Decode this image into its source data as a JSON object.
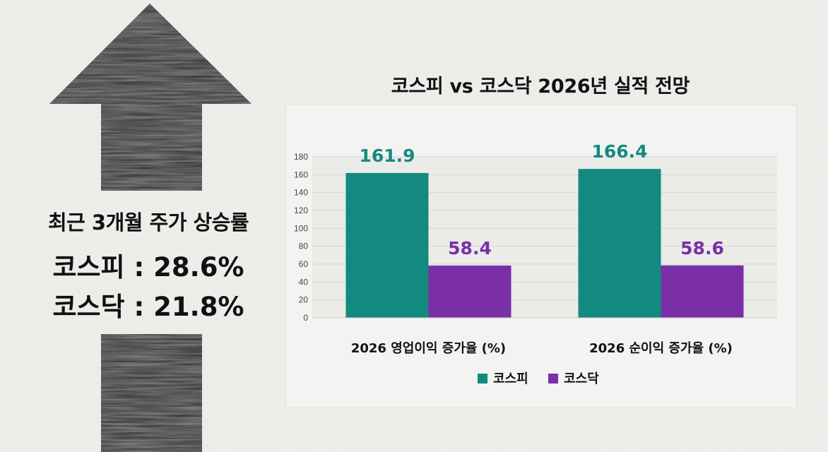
{
  "colors": {
    "kospi": "#138a7f",
    "kosdaq": "#7a2fa8",
    "arrow": "#2b2b2b",
    "background": "#efefec"
  },
  "arrow_icon": "up-arrow-icon",
  "side_panel": {
    "title": "최근 3개월 주가 상승률",
    "kospi_line": "코스피 : 28.6%",
    "kosdaq_line": "코스닥 : 21.8%"
  },
  "chart_data": {
    "type": "bar",
    "title": "코스피 vs 코스닥 2026년 실적 전망",
    "categories": [
      "2026 영업이익 증가율 (%)",
      "2026 순이익 증가율 (%)"
    ],
    "series": [
      {
        "name": "코스피",
        "values": [
          161.9,
          166.4
        ],
        "labels": [
          "161.9",
          "166.4"
        ],
        "color": "#138a7f"
      },
      {
        "name": "코스닥",
        "values": [
          58.4,
          58.6
        ],
        "labels": [
          "58.4",
          "58.6"
        ],
        "color": "#7a2fa8"
      }
    ],
    "yticks": [
      0,
      20,
      40,
      60,
      80,
      100,
      120,
      140,
      160,
      180
    ],
    "ylim": [
      0,
      180
    ],
    "grid": true,
    "legend_position": "bottom-center"
  }
}
